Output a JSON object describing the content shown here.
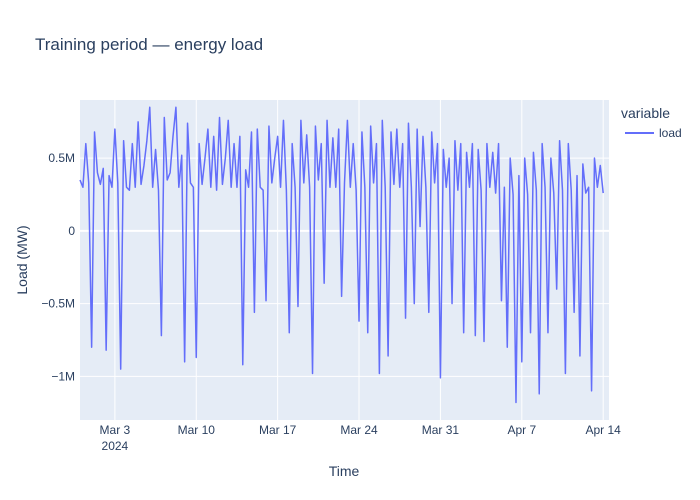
{
  "chart_data": {
    "type": "line",
    "title": "Training period — energy load",
    "xlabel": "Time",
    "ylabel": "Load (MW)",
    "legend": {
      "title": "variable",
      "placement": "right"
    },
    "x_range": [
      "2024-02-29T00:00",
      "2024-04-14T12:00"
    ],
    "ylim": [
      -1300000,
      900000
    ],
    "x_ticks": [
      {
        "date": "2024-03-03",
        "label": "Mar 3",
        "sublabel": "2024"
      },
      {
        "date": "2024-03-10",
        "label": "Mar 10",
        "sublabel": ""
      },
      {
        "date": "2024-03-17",
        "label": "Mar 17",
        "sublabel": ""
      },
      {
        "date": "2024-03-24",
        "label": "Mar 24",
        "sublabel": ""
      },
      {
        "date": "2024-03-31",
        "label": "Mar 31",
        "sublabel": ""
      },
      {
        "date": "2024-04-07",
        "label": "Apr 7",
        "sublabel": ""
      },
      {
        "date": "2024-04-14",
        "label": "Apr 14",
        "sublabel": ""
      }
    ],
    "y_ticks": [
      {
        "value": 500000,
        "label": "0.5M"
      },
      {
        "value": 0,
        "label": "0"
      },
      {
        "value": -500000,
        "label": "−0.5M"
      },
      {
        "value": -1000000,
        "label": "−1M"
      }
    ],
    "grid": true,
    "series": [
      {
        "name": "load",
        "color": "#636efa",
        "points": [
          [
            "2024-02-29T00:00",
            350000
          ],
          [
            "2024-02-29T06:00",
            300000
          ],
          [
            "2024-02-29T12:00",
            600000
          ],
          [
            "2024-02-29T18:00",
            330000
          ],
          [
            "2024-03-01T00:00",
            -800000
          ],
          [
            "2024-03-01T06:00",
            680000
          ],
          [
            "2024-03-01T12:00",
            400000
          ],
          [
            "2024-03-01T18:00",
            320000
          ],
          [
            "2024-03-02T00:00",
            430000
          ],
          [
            "2024-03-02T06:00",
            -820000
          ],
          [
            "2024-03-02T12:00",
            380000
          ],
          [
            "2024-03-02T18:00",
            300000
          ],
          [
            "2024-03-03T00:00",
            700000
          ],
          [
            "2024-03-03T06:00",
            330000
          ],
          [
            "2024-03-03T12:00",
            -950000
          ],
          [
            "2024-03-03T18:00",
            620000
          ],
          [
            "2024-03-04T00:00",
            300000
          ],
          [
            "2024-03-04T06:00",
            280000
          ],
          [
            "2024-03-04T12:00",
            600000
          ],
          [
            "2024-03-04T18:00",
            300000
          ],
          [
            "2024-03-05T00:00",
            750000
          ],
          [
            "2024-03-05T06:00",
            320000
          ],
          [
            "2024-03-05T12:00",
            450000
          ],
          [
            "2024-03-05T18:00",
            620000
          ],
          [
            "2024-03-06T00:00",
            850000
          ],
          [
            "2024-03-06T06:00",
            300000
          ],
          [
            "2024-03-06T12:00",
            560000
          ],
          [
            "2024-03-06T18:00",
            280000
          ],
          [
            "2024-03-07T00:00",
            -720000
          ],
          [
            "2024-03-07T06:00",
            780000
          ],
          [
            "2024-03-07T12:00",
            350000
          ],
          [
            "2024-03-07T18:00",
            400000
          ],
          [
            "2024-03-08T00:00",
            650000
          ],
          [
            "2024-03-08T06:00",
            850000
          ],
          [
            "2024-03-08T12:00",
            300000
          ],
          [
            "2024-03-08T18:00",
            520000
          ],
          [
            "2024-03-09T00:00",
            -900000
          ],
          [
            "2024-03-09T06:00",
            740000
          ],
          [
            "2024-03-09T12:00",
            330000
          ],
          [
            "2024-03-09T18:00",
            300000
          ],
          [
            "2024-03-10T00:00",
            -870000
          ],
          [
            "2024-03-10T06:00",
            600000
          ],
          [
            "2024-03-10T12:00",
            320000
          ],
          [
            "2024-03-10T18:00",
            500000
          ],
          [
            "2024-03-11T00:00",
            700000
          ],
          [
            "2024-03-11T06:00",
            300000
          ],
          [
            "2024-03-11T12:00",
            650000
          ],
          [
            "2024-03-11T18:00",
            280000
          ],
          [
            "2024-03-12T00:00",
            780000
          ],
          [
            "2024-03-12T06:00",
            320000
          ],
          [
            "2024-03-12T12:00",
            500000
          ],
          [
            "2024-03-12T18:00",
            760000
          ],
          [
            "2024-03-13T00:00",
            300000
          ],
          [
            "2024-03-13T06:00",
            600000
          ],
          [
            "2024-03-13T12:00",
            300000
          ],
          [
            "2024-03-13T18:00",
            650000
          ],
          [
            "2024-03-14T00:00",
            -920000
          ],
          [
            "2024-03-14T06:00",
            420000
          ],
          [
            "2024-03-14T12:00",
            300000
          ],
          [
            "2024-03-14T18:00",
            680000
          ],
          [
            "2024-03-15T00:00",
            -560000
          ],
          [
            "2024-03-15T06:00",
            700000
          ],
          [
            "2024-03-15T12:00",
            300000
          ],
          [
            "2024-03-15T18:00",
            280000
          ],
          [
            "2024-03-16T00:00",
            -480000
          ],
          [
            "2024-03-16T06:00",
            720000
          ],
          [
            "2024-03-16T12:00",
            330000
          ],
          [
            "2024-03-16T18:00",
            500000
          ],
          [
            "2024-03-17T00:00",
            650000
          ],
          [
            "2024-03-17T06:00",
            300000
          ],
          [
            "2024-03-17T12:00",
            760000
          ],
          [
            "2024-03-17T18:00",
            280000
          ],
          [
            "2024-03-18T00:00",
            -700000
          ],
          [
            "2024-03-18T06:00",
            600000
          ],
          [
            "2024-03-18T12:00",
            300000
          ],
          [
            "2024-03-18T18:00",
            -520000
          ],
          [
            "2024-03-19T00:00",
            760000
          ],
          [
            "2024-03-19T06:00",
            330000
          ],
          [
            "2024-03-19T12:00",
            660000
          ],
          [
            "2024-03-19T18:00",
            300000
          ],
          [
            "2024-03-20T00:00",
            -980000
          ],
          [
            "2024-03-20T06:00",
            720000
          ],
          [
            "2024-03-20T12:00",
            350000
          ],
          [
            "2024-03-20T18:00",
            600000
          ],
          [
            "2024-03-21T00:00",
            -360000
          ],
          [
            "2024-03-21T06:00",
            760000
          ],
          [
            "2024-03-21T12:00",
            300000
          ],
          [
            "2024-03-21T18:00",
            640000
          ],
          [
            "2024-03-22T00:00",
            300000
          ],
          [
            "2024-03-22T06:00",
            700000
          ],
          [
            "2024-03-22T12:00",
            -450000
          ],
          [
            "2024-03-22T18:00",
            330000
          ],
          [
            "2024-03-23T00:00",
            760000
          ],
          [
            "2024-03-23T06:00",
            300000
          ],
          [
            "2024-03-23T12:00",
            600000
          ],
          [
            "2024-03-23T18:00",
            280000
          ],
          [
            "2024-03-24T00:00",
            -620000
          ],
          [
            "2024-03-24T06:00",
            680000
          ],
          [
            "2024-03-24T12:00",
            300000
          ],
          [
            "2024-03-24T18:00",
            -700000
          ],
          [
            "2024-03-25T00:00",
            720000
          ],
          [
            "2024-03-25T06:00",
            330000
          ],
          [
            "2024-03-25T12:00",
            600000
          ],
          [
            "2024-03-25T18:00",
            -980000
          ],
          [
            "2024-03-26T00:00",
            760000
          ],
          [
            "2024-03-26T06:00",
            300000
          ],
          [
            "2024-03-26T12:00",
            -860000
          ],
          [
            "2024-03-26T18:00",
            680000
          ],
          [
            "2024-03-27T00:00",
            320000
          ],
          [
            "2024-03-27T06:00",
            700000
          ],
          [
            "2024-03-27T12:00",
            300000
          ],
          [
            "2024-03-27T18:00",
            600000
          ],
          [
            "2024-03-28T00:00",
            -600000
          ],
          [
            "2024-03-28T06:00",
            740000
          ],
          [
            "2024-03-28T12:00",
            300000
          ],
          [
            "2024-03-28T18:00",
            -500000
          ],
          [
            "2024-03-29T00:00",
            700000
          ],
          [
            "2024-03-29T06:00",
            30000
          ],
          [
            "2024-03-29T12:00",
            650000
          ],
          [
            "2024-03-29T18:00",
            300000
          ],
          [
            "2024-03-30T00:00",
            -560000
          ],
          [
            "2024-03-30T06:00",
            680000
          ],
          [
            "2024-03-30T12:00",
            330000
          ],
          [
            "2024-03-30T18:00",
            600000
          ],
          [
            "2024-03-31T00:00",
            -1010000
          ],
          [
            "2024-03-31T06:00",
            560000
          ],
          [
            "2024-03-31T12:00",
            300000
          ],
          [
            "2024-03-31T18:00",
            500000
          ],
          [
            "2024-04-01T00:00",
            -500000
          ],
          [
            "2024-04-01T06:00",
            620000
          ],
          [
            "2024-04-01T12:00",
            280000
          ],
          [
            "2024-04-01T18:00",
            600000
          ],
          [
            "2024-04-02T00:00",
            -700000
          ],
          [
            "2024-04-02T06:00",
            540000
          ],
          [
            "2024-04-02T12:00",
            300000
          ],
          [
            "2024-04-02T18:00",
            600000
          ],
          [
            "2024-04-03T00:00",
            -720000
          ],
          [
            "2024-04-03T06:00",
            560000
          ],
          [
            "2024-04-03T12:00",
            280000
          ],
          [
            "2024-04-03T18:00",
            -760000
          ],
          [
            "2024-04-04T00:00",
            600000
          ],
          [
            "2024-04-04T06:00",
            300000
          ],
          [
            "2024-04-04T12:00",
            540000
          ],
          [
            "2024-04-04T18:00",
            260000
          ],
          [
            "2024-04-05T00:00",
            600000
          ],
          [
            "2024-04-05T06:00",
            -480000
          ],
          [
            "2024-04-05T12:00",
            300000
          ],
          [
            "2024-04-05T18:00",
            -800000
          ],
          [
            "2024-04-06T00:00",
            500000
          ],
          [
            "2024-04-06T06:00",
            250000
          ],
          [
            "2024-04-06T12:00",
            -1180000
          ],
          [
            "2024-04-06T18:00",
            380000
          ],
          [
            "2024-04-07T00:00",
            -900000
          ],
          [
            "2024-04-07T06:00",
            500000
          ],
          [
            "2024-04-07T12:00",
            250000
          ],
          [
            "2024-04-07T18:00",
            -700000
          ],
          [
            "2024-04-08T00:00",
            540000
          ],
          [
            "2024-04-08T06:00",
            280000
          ],
          [
            "2024-04-08T12:00",
            -1120000
          ],
          [
            "2024-04-08T18:00",
            600000
          ],
          [
            "2024-04-09T00:00",
            300000
          ],
          [
            "2024-04-09T06:00",
            -700000
          ],
          [
            "2024-04-09T12:00",
            500000
          ],
          [
            "2024-04-09T18:00",
            260000
          ],
          [
            "2024-04-10T00:00",
            -400000
          ],
          [
            "2024-04-10T06:00",
            620000
          ],
          [
            "2024-04-10T12:00",
            280000
          ],
          [
            "2024-04-10T18:00",
            -980000
          ],
          [
            "2024-04-11T00:00",
            600000
          ],
          [
            "2024-04-11T06:00",
            280000
          ],
          [
            "2024-04-11T12:00",
            -560000
          ],
          [
            "2024-04-11T18:00",
            380000
          ],
          [
            "2024-04-12T00:00",
            -860000
          ],
          [
            "2024-04-12T06:00",
            460000
          ],
          [
            "2024-04-12T12:00",
            260000
          ],
          [
            "2024-04-12T18:00",
            300000
          ],
          [
            "2024-04-13T00:00",
            -1100000
          ],
          [
            "2024-04-13T06:00",
            500000
          ],
          [
            "2024-04-13T12:00",
            300000
          ],
          [
            "2024-04-13T18:00",
            450000
          ],
          [
            "2024-04-14T00:00",
            260000
          ]
        ]
      }
    ]
  }
}
